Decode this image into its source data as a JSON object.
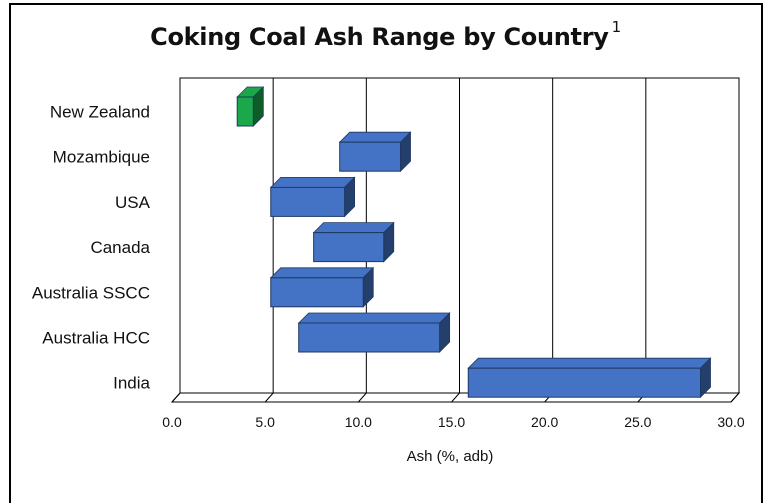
{
  "chart_data": {
    "type": "bar",
    "subtype": "floating-range-3d",
    "title": "Coking Coal Ash Range by Country",
    "title_superscript": "1",
    "xlabel": "Ash (%, adb)",
    "ylabel": "",
    "xlim": [
      0,
      30
    ],
    "x_ticks": [
      "0.0",
      "5.0",
      "10.0",
      "15.0",
      "20.0",
      "25.0",
      "30.0"
    ],
    "grid": true,
    "categories": [
      "New Zealand",
      "Mozambique",
      "USA",
      "Canada",
      "Australia SSCC",
      "Australia HCC",
      "India"
    ],
    "ranges": [
      {
        "category": "New Zealand",
        "min": 3.5,
        "max": 4.9,
        "color": "#1aa84a"
      },
      {
        "category": "Mozambique",
        "min": 9.0,
        "max": 12.8,
        "color": "#4472c4"
      },
      {
        "category": "USA",
        "min": 5.3,
        "max": 9.8,
        "color": "#4472c4"
      },
      {
        "category": "Canada",
        "min": 7.6,
        "max": 11.9,
        "color": "#4472c4"
      },
      {
        "category": "Australia SSCC",
        "min": 5.3,
        "max": 10.8,
        "color": "#4472c4"
      },
      {
        "category": "Australia HCC",
        "min": 6.8,
        "max": 14.9,
        "color": "#4472c4"
      },
      {
        "category": "India",
        "min": 15.9,
        "max": 28.9,
        "color": "#4472c4"
      }
    ]
  }
}
